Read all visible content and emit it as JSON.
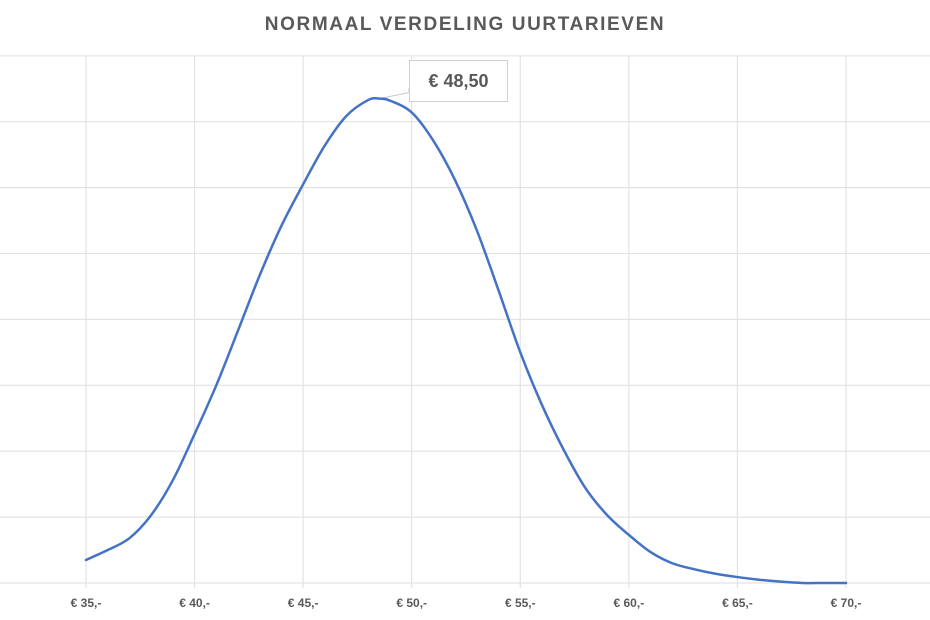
{
  "chart_data": {
    "type": "line",
    "title": "NORMAAL VERDELING UURTARIEVEN",
    "xlabel": "",
    "ylabel": "",
    "x_tick_labels": [
      "€ 35,-",
      "€ 40,-",
      "€ 45,-",
      "€ 50,-",
      "€ 55,-",
      "€ 60,-",
      "€ 65,-",
      "€ 70,-"
    ],
    "x_ticks": [
      35,
      40,
      45,
      50,
      55,
      60,
      65,
      70
    ],
    "xlim": [
      35,
      70
    ],
    "ylim": [
      0,
      8
    ],
    "y_axis_labels_visible": false,
    "grid": true,
    "legend": null,
    "series": [
      {
        "name": "Normaal verdeling",
        "color": "#4472C4",
        "x": [
          35,
          36,
          37,
          38,
          39,
          40,
          41,
          42,
          43,
          44,
          45,
          46,
          47,
          48,
          48.5,
          49,
          50,
          51,
          52,
          53,
          54,
          55,
          56,
          57,
          58,
          59,
          60,
          61,
          62,
          63,
          64,
          65,
          66,
          67,
          68,
          69,
          70
        ],
        "values": [
          0.35,
          0.5,
          0.68,
          1.03,
          1.56,
          2.26,
          3.0,
          3.83,
          4.67,
          5.42,
          6.05,
          6.64,
          7.09,
          7.33,
          7.35,
          7.32,
          7.14,
          6.71,
          6.11,
          5.35,
          4.44,
          3.5,
          2.7,
          2.02,
          1.44,
          1.03,
          0.73,
          0.47,
          0.3,
          0.21,
          0.14,
          0.09,
          0.05,
          0.02,
          0.0,
          0.0,
          0.0
        ]
      }
    ],
    "annotations": [
      {
        "text": "€ 48,50",
        "x": 48.5,
        "y": 7.35
      }
    ]
  },
  "labels": {
    "peak_callout": "€ 48,50"
  }
}
